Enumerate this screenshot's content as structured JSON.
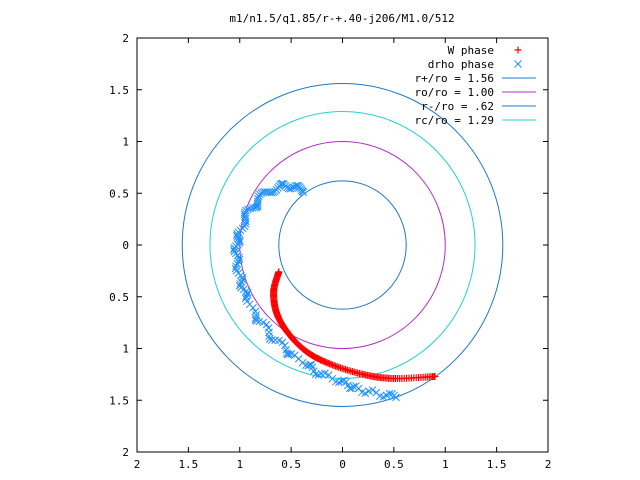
{
  "chart_data": {
    "type": "scatter",
    "title": "m1/n1.5/q1.85/r-+.40-j206/M1.0/512",
    "xlim": [
      -2,
      2
    ],
    "ylim": [
      -2,
      2
    ],
    "x_ticks": [
      {
        "value": -2,
        "label": "2"
      },
      {
        "value": -1.5,
        "label": "1.5"
      },
      {
        "value": -1,
        "label": "1"
      },
      {
        "value": -0.5,
        "label": "0.5"
      },
      {
        "value": 0,
        "label": "0"
      },
      {
        "value": 0.5,
        "label": "0.5"
      },
      {
        "value": 1,
        "label": "1"
      },
      {
        "value": 1.5,
        "label": "1.5"
      },
      {
        "value": 2,
        "label": "2"
      }
    ],
    "y_ticks": [
      {
        "value": 2,
        "label": "2"
      },
      {
        "value": 1.5,
        "label": "1.5"
      },
      {
        "value": 1,
        "label": "1"
      },
      {
        "value": 0.5,
        "label": "0.5"
      },
      {
        "value": 0,
        "label": "0"
      },
      {
        "value": -0.5,
        "label": "0.5"
      },
      {
        "value": -1,
        "label": "1"
      },
      {
        "value": -1.5,
        "label": "1.5"
      },
      {
        "value": -2,
        "label": "2"
      }
    ],
    "grid": false,
    "legend_position": "top-right",
    "series": [
      {
        "name": "W phase",
        "marker": "+",
        "color": "#ff0000",
        "path": [
          [
            -0.62,
            -0.26
          ],
          [
            -0.67,
            -0.45
          ],
          [
            -0.64,
            -0.66
          ],
          [
            -0.53,
            -0.85
          ],
          [
            -0.35,
            -1.03
          ],
          [
            -0.12,
            -1.15
          ],
          [
            0.2,
            -1.25
          ],
          [
            0.5,
            -1.29
          ],
          [
            0.9,
            -1.27
          ]
        ]
      },
      {
        "name": "drho phase",
        "marker": "x",
        "color": "#1e90ff",
        "path": [
          [
            -0.4,
            0.53
          ],
          [
            -0.6,
            0.57
          ],
          [
            -0.79,
            0.46
          ],
          [
            -0.95,
            0.25
          ],
          [
            -1.03,
            0.0
          ],
          [
            -1.0,
            -0.28
          ],
          [
            -0.88,
            -0.62
          ],
          [
            -0.62,
            -0.95
          ],
          [
            -0.28,
            -1.2
          ],
          [
            0.1,
            -1.37
          ],
          [
            0.5,
            -1.47
          ]
        ]
      }
    ],
    "circles": [
      {
        "name": "r+/ro = 1.56",
        "radius": 1.56,
        "color": "#1f78c8"
      },
      {
        "name": "ro/ro = 1.00",
        "radius": 1.0,
        "color": "#b030c8"
      },
      {
        "name": "r-/ro = .62",
        "radius": 0.62,
        "color": "#1f78c8"
      },
      {
        "name": "rc/ro = 1.29",
        "radius": 1.29,
        "color": "#22d0d8"
      }
    ]
  }
}
